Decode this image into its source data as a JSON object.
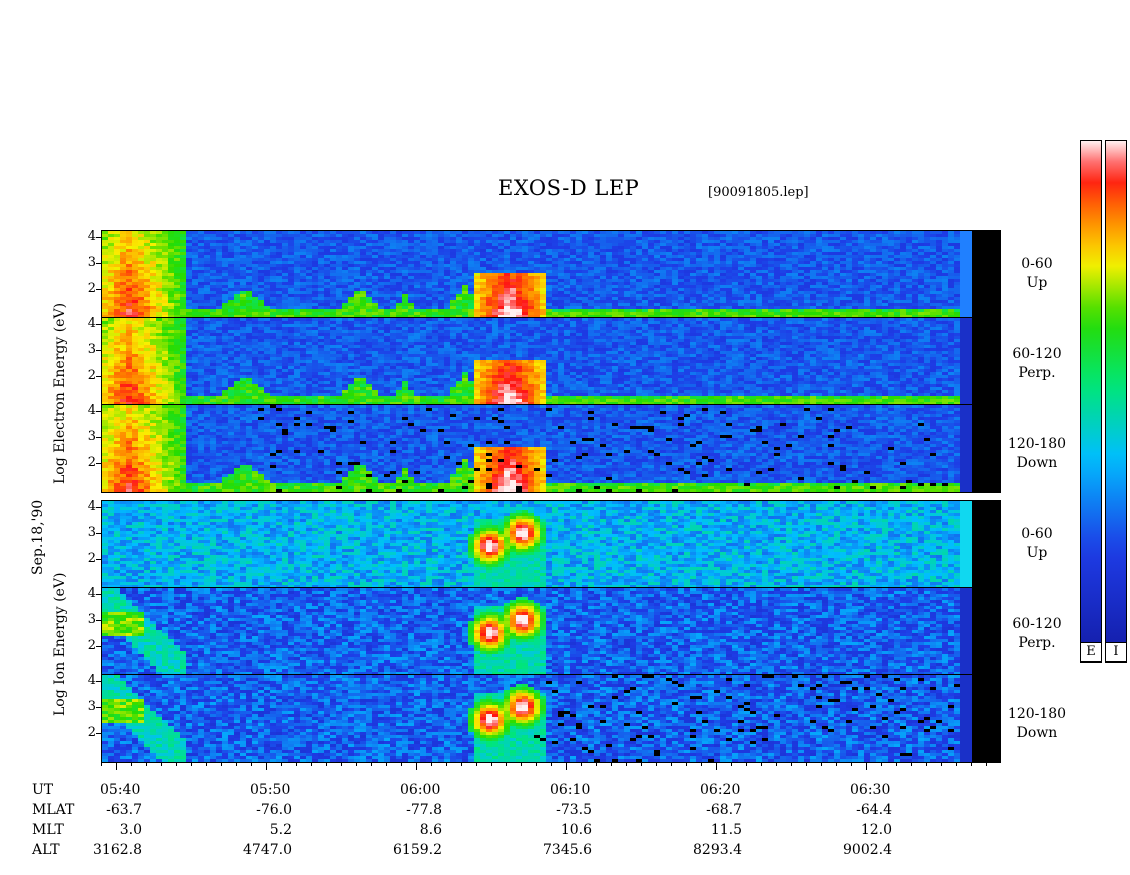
{
  "title": "EXOS-D LEP",
  "filename": "[90091805.lep]",
  "date_label": "Sep.18,'90",
  "electron_ylabel": "Log  Electron  Energy (eV)",
  "ion_ylabel": "Log  Ion  Energy (eV)",
  "panel_tick_labels": [
    "4",
    "3",
    "2"
  ],
  "pitch_labels": [
    {
      "range": "0-60",
      "name": "Up"
    },
    {
      "range": "60-120",
      "name": "Perp."
    },
    {
      "range": "120-180",
      "name": "Down"
    }
  ],
  "colorbar_tags": [
    "E",
    "I"
  ],
  "time_axis": {
    "ticks": [
      "05:40",
      "05:50",
      "06:00",
      "06:10",
      "06:20",
      "06:30"
    ],
    "rows": [
      {
        "label": "UT",
        "values": [
          "05:40",
          "05:50",
          "06:00",
          "06:10",
          "06:20",
          "06:30"
        ]
      },
      {
        "label": "MLAT",
        "values": [
          "-63.7",
          "-76.0",
          "-77.8",
          "-73.5",
          "-68.7",
          "-64.4"
        ]
      },
      {
        "label": "MLT",
        "values": [
          "3.0",
          "5.2",
          "8.6",
          "10.6",
          "11.5",
          "12.0"
        ]
      },
      {
        "label": "ALT",
        "values": [
          "3162.8",
          "4747.0",
          "6159.2",
          "7345.6",
          "8293.4",
          "9002.4"
        ]
      }
    ]
  },
  "chart_data": {
    "type": "heatmap",
    "title": "EXOS-D LEP",
    "x": [
      "05:40",
      "05:50",
      "06:00",
      "06:10",
      "06:20",
      "06:30"
    ],
    "ylim": [
      1,
      4.2
    ],
    "yticks": [
      2,
      3,
      4
    ],
    "colors": {
      "low": "#1b2fbf",
      "mid": "#00e0ff",
      "high": "#ff2a00",
      "peak": "#ffffff",
      "fill": "#000000"
    },
    "panels": [
      {
        "species": "Electron",
        "pitch": "0-60",
        "direction": "Up"
      },
      {
        "species": "Electron",
        "pitch": "60-120",
        "direction": "Perp."
      },
      {
        "species": "Electron",
        "pitch": "120-180",
        "direction": "Down"
      },
      {
        "species": "Ion",
        "pitch": "0-60",
        "direction": "Up"
      },
      {
        "species": "Ion",
        "pitch": "60-120",
        "direction": "Perp."
      },
      {
        "species": "Ion",
        "pitch": "120-180",
        "direction": "Down"
      }
    ]
  }
}
